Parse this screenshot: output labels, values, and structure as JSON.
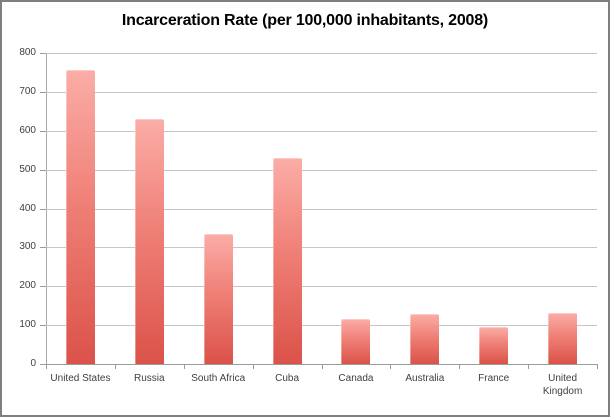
{
  "window": {
    "background": "#ffffff",
    "frame_border_color": "#7f7f7f"
  },
  "chart_data": {
    "type": "bar",
    "title": "Incarceration Rate (per 100,000 inhabitants, 2008)",
    "categories": [
      "United States",
      "Russia",
      "South Africa",
      "Cuba",
      "Canada",
      "Australia",
      "France",
      "United Kingdom"
    ],
    "values": [
      755,
      629,
      335,
      530,
      116,
      129,
      96,
      130
    ],
    "xlabel": "",
    "ylabel": "",
    "ylim": [
      0,
      800
    ],
    "ytick_interval": 100,
    "ytick_labels": [
      "0",
      "100",
      "200",
      "300",
      "400",
      "500",
      "600",
      "700",
      "800"
    ],
    "grid": true,
    "legend": false,
    "colors": {
      "bar_gradient_top": "#fbada7",
      "bar_gradient_bottom": "#db5249",
      "gridline": "#c6c6c6",
      "axis_line": "#9b9b9b",
      "title_text": "#000000",
      "tick_text": "#3f3f3f"
    }
  }
}
